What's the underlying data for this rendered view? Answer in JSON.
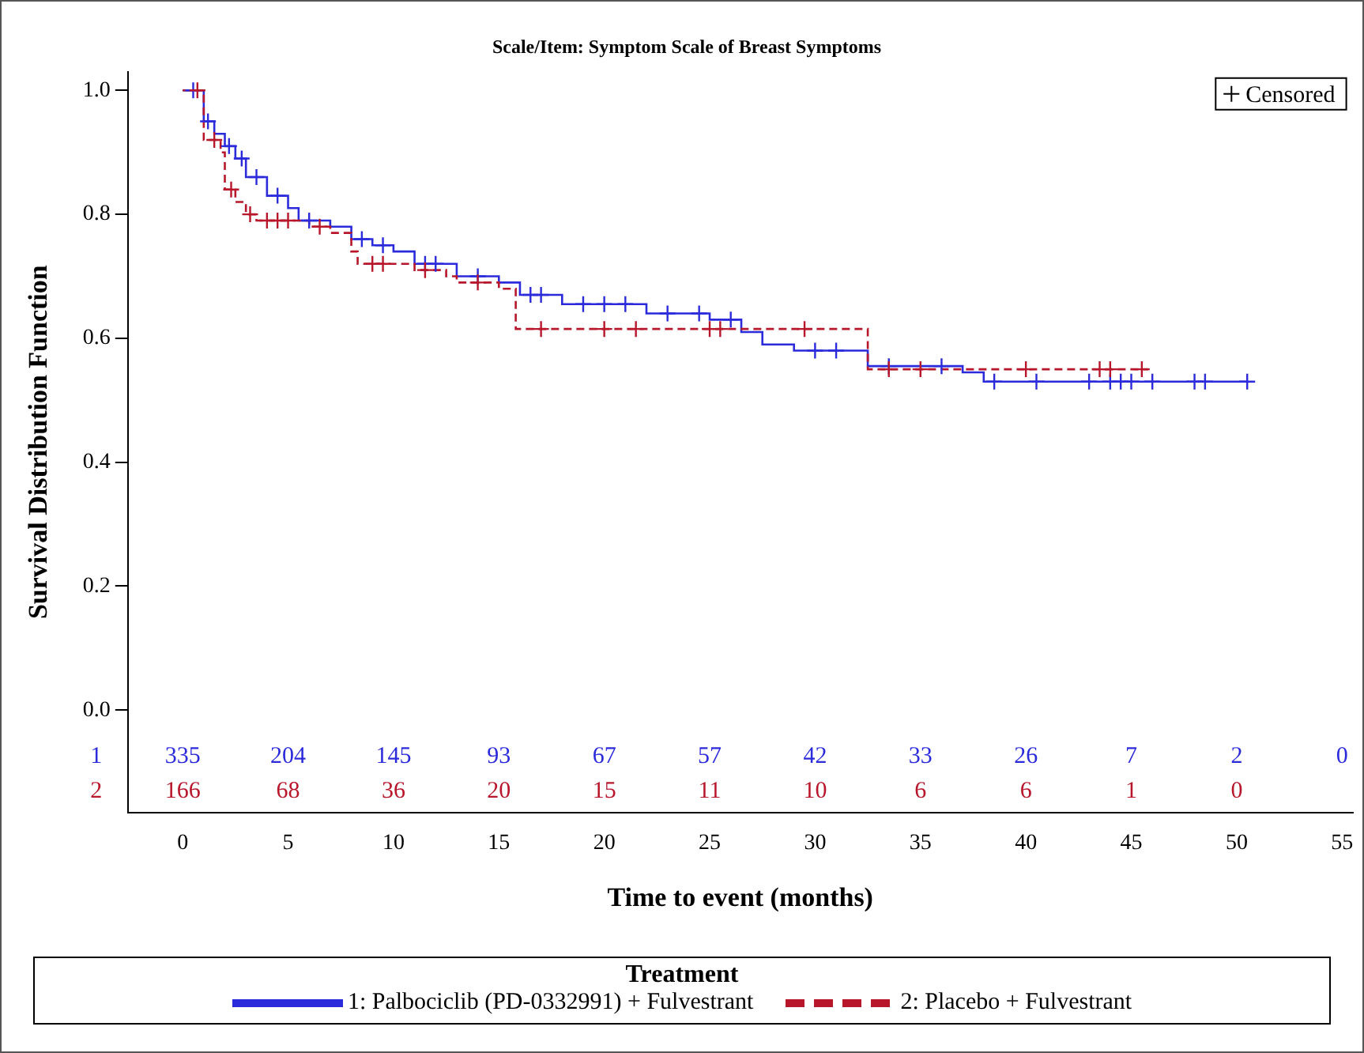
{
  "chart_data": {
    "type": "step",
    "title": "Scale/Item: Symptom Scale of Breast Symptoms",
    "xlabel": "Time to event (months)",
    "ylabel": "Survival Distribution Function",
    "legend_title": "Treatment",
    "legend": "bottom",
    "grid": false,
    "xlim": [
      -2.6,
      55.5
    ],
    "xticks": [
      0,
      5,
      10,
      15,
      20,
      25,
      30,
      35,
      40,
      45,
      50,
      55
    ],
    "ylim": [
      -0.165,
      1.03
    ],
    "yticks": [
      {
        "value": 0,
        "label": "0.0"
      },
      {
        "value": 0.2,
        "label": "0.2"
      },
      {
        "value": 0.4,
        "label": "0.4"
      },
      {
        "value": 0.6,
        "label": "0.6"
      },
      {
        "value": 0.8,
        "label": "0.8"
      },
      {
        "value": 1,
        "label": "1.0"
      }
    ],
    "series": [
      {
        "name": "1: Palbociclib (PD-0332991) + Fulvestrant",
        "color": "#2b2bdc",
        "line_style": "solid",
        "marker": "none",
        "x": [
          0,
          1,
          1.5,
          2,
          2.5,
          3,
          4,
          5,
          5.5,
          7,
          8,
          9,
          10,
          11,
          13,
          15,
          16,
          18,
          22,
          25,
          26.5,
          27.5,
          29,
          32.5,
          37,
          38,
          50.5
        ],
        "values": [
          1,
          0.95,
          0.93,
          0.91,
          0.89,
          0.86,
          0.83,
          0.81,
          0.79,
          0.78,
          0.76,
          0.75,
          0.74,
          0.72,
          0.7,
          0.69,
          0.67,
          0.655,
          0.64,
          0.63,
          0.61,
          0.59,
          0.58,
          0.555,
          0.545,
          0.53,
          0.53
        ]
      },
      {
        "name": "2: Placebo + Fulvestrant",
        "color": "#b8172b",
        "line_style": "dashed",
        "marker": "none",
        "x": [
          0,
          1,
          1.8,
          2,
          2.5,
          3,
          3.5,
          6,
          7,
          8,
          8.3,
          11,
          12.5,
          13,
          15,
          15.8,
          32.5,
          45.8
        ],
        "values": [
          1,
          0.92,
          0.9,
          0.84,
          0.82,
          0.8,
          0.79,
          0.78,
          0.77,
          0.74,
          0.72,
          0.71,
          0.7,
          0.69,
          0.68,
          0.615,
          0.55,
          0.55
        ]
      },
      {
        "type": "scatter",
        "color": "#2b2bdc",
        "marker": "cross",
        "x": [
          0.5,
          1.2,
          2.2,
          2.8,
          3.5,
          4.5,
          6,
          8.5,
          9.5,
          11.5,
          12,
          14,
          16.5,
          17,
          19,
          20,
          21,
          23,
          24.5,
          26,
          30,
          31,
          33.5,
          36,
          38.5,
          40.5,
          43,
          44,
          44.5,
          45,
          46,
          48,
          48.5,
          50.5
        ],
        "values": [
          1,
          0.95,
          0.91,
          0.89,
          0.86,
          0.83,
          0.79,
          0.76,
          0.75,
          0.72,
          0.72,
          0.7,
          0.67,
          0.67,
          0.655,
          0.655,
          0.655,
          0.64,
          0.64,
          0.63,
          0.58,
          0.58,
          0.555,
          0.555,
          0.53,
          0.53,
          0.53,
          0.53,
          0.53,
          0.53,
          0.53,
          0.53,
          0.53,
          0.53
        ]
      },
      {
        "type": "scatter",
        "color": "#b8172b",
        "marker": "cross",
        "x": [
          0.7,
          1.5,
          2.3,
          3.2,
          4,
          4.5,
          5,
          6.5,
          9,
          9.5,
          11.5,
          14,
          17,
          20,
          21.5,
          25,
          25.5,
          29.5,
          33.5,
          35,
          40,
          43.5,
          44,
          45.5
        ],
        "values": [
          1,
          0.92,
          0.84,
          0.8,
          0.79,
          0.79,
          0.79,
          0.78,
          0.72,
          0.72,
          0.71,
          0.69,
          0.615,
          0.615,
          0.615,
          0.615,
          0.615,
          0.615,
          0.55,
          0.55,
          0.55,
          0.55,
          0.55,
          0.55
        ]
      }
    ],
    "annotations": [
      "Censored",
      "1",
      "335 204 145 93 67 57 42 33 26 7 2 0",
      "2",
      "166 68 36 20 15 11 10 6 6 1 0"
    ]
  }
}
